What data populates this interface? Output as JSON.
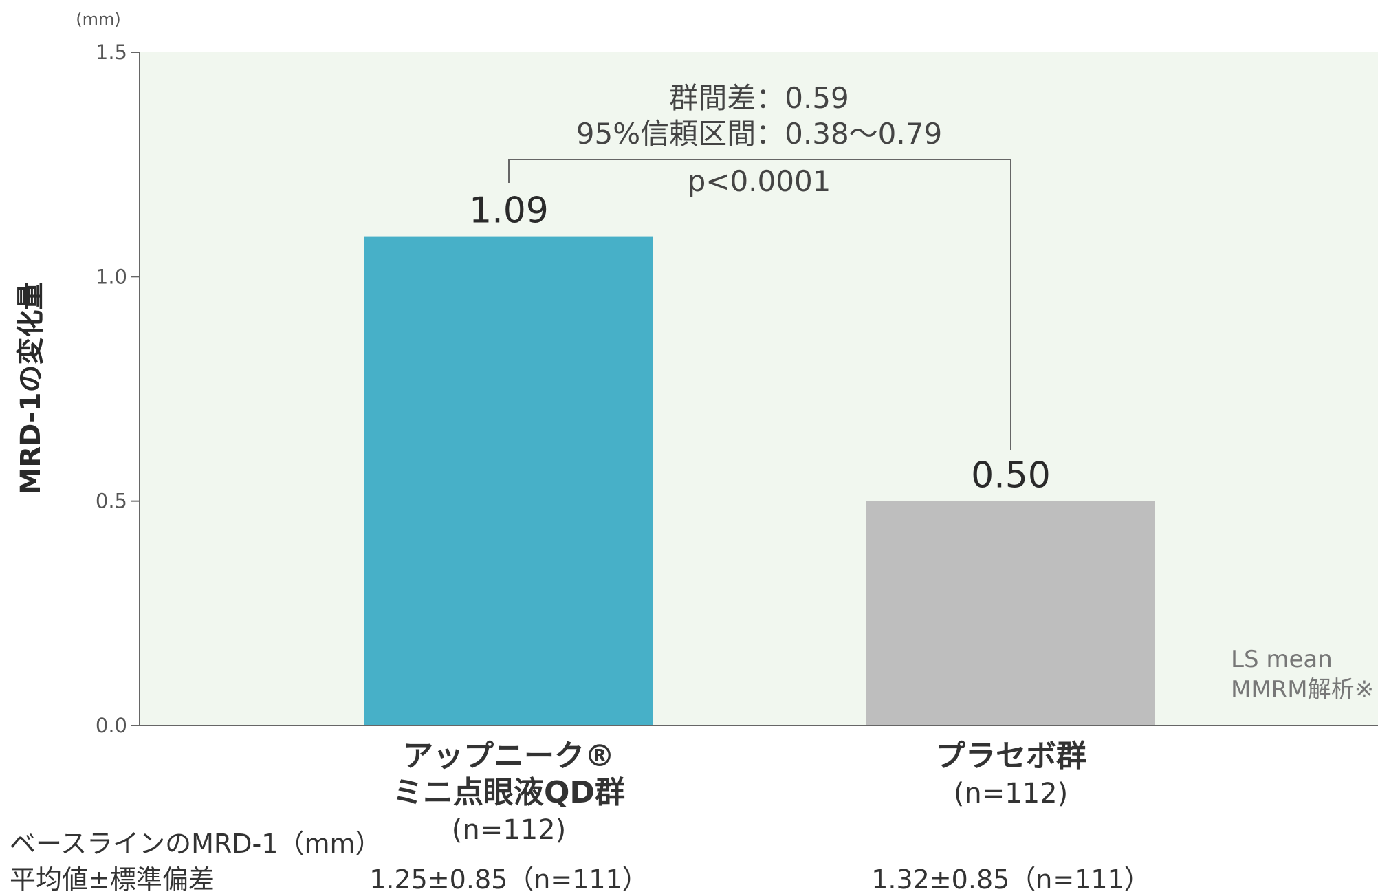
{
  "chart_data": {
    "type": "bar",
    "y_unit": "(mm)",
    "ylabel": "MRD-1の変化量",
    "ylim": [
      0,
      1.5
    ],
    "yticks": [
      "0.0",
      "0.5",
      "1.0",
      "1.5"
    ],
    "grid": false,
    "categories": [
      {
        "lines": [
          "アップニーク®",
          "ミニ点眼液QD群"
        ],
        "n": "(n=112)",
        "baseline": "1.25±0.85（n=111）"
      },
      {
        "lines": [
          "プラセボ群"
        ],
        "n": "(n=112)",
        "baseline": "1.32±0.85（n=111）"
      }
    ],
    "values": [
      1.09,
      0.5
    ],
    "value_labels": [
      "1.09",
      "0.50"
    ],
    "colors": [
      "#47b0c8",
      "#bebebe"
    ],
    "plot_background": "#f1f7ef",
    "comparison": {
      "line1": "群間差：0.59",
      "line2": "95%信頼区間：0.38～0.79",
      "p": "p<0.0001"
    },
    "note_lines": [
      "LS mean",
      "MMRM解析※"
    ],
    "baseline_label_lines": [
      "ベースラインのMRD-1（mm）",
      "平均値±標準偏差"
    ]
  }
}
